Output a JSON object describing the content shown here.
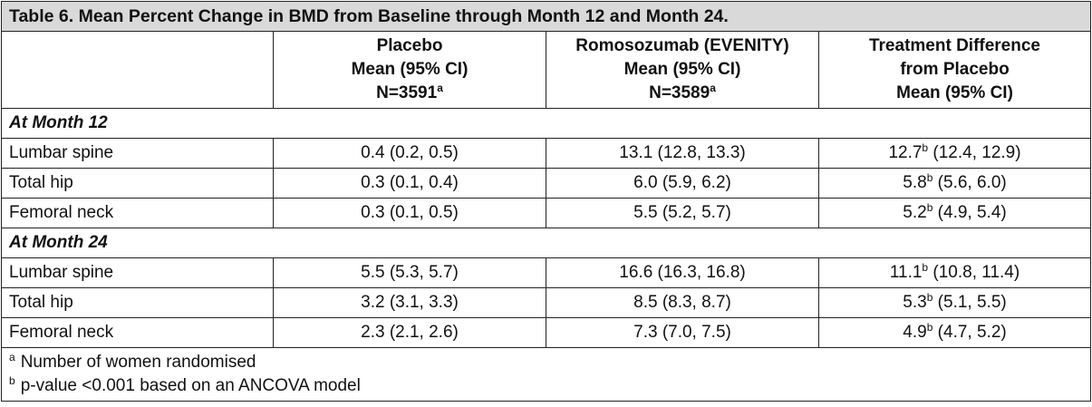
{
  "table": {
    "title": "Table 6. Mean Percent Change in BMD from Baseline through Month 12 and Month 24.",
    "headers": [
      {
        "lines": [
          "Placebo",
          "Mean (95% CI)",
          "N=3591"
        ],
        "sup": "a"
      },
      {
        "lines": [
          "Romosozumab (EVENITY)",
          "Mean (95% CI)",
          "N=3589"
        ],
        "sup": "a"
      },
      {
        "lines": [
          "Treatment Difference",
          "from Placebo",
          "Mean (95% CI)"
        ],
        "sup": ""
      }
    ],
    "sections": [
      {
        "label": "At Month 12",
        "rows": [
          {
            "site": "Lumbar spine",
            "placebo": "0.4 (0.2, 0.5)",
            "romo": "13.1 (12.8, 13.3)",
            "diff_value": "12.7",
            "diff_sup": "b",
            "diff_ci": " (12.4, 12.9)"
          },
          {
            "site": "Total hip",
            "placebo": "0.3 (0.1, 0.4)",
            "romo": "6.0 (5.9, 6.2)",
            "diff_value": "5.8",
            "diff_sup": "b",
            "diff_ci": " (5.6, 6.0)"
          },
          {
            "site": "Femoral neck",
            "placebo": "0.3 (0.1, 0.5)",
            "romo": "5.5 (5.2, 5.7)",
            "diff_value": "5.2",
            "diff_sup": "b",
            "diff_ci": " (4.9, 5.4)"
          }
        ]
      },
      {
        "label": "At Month 24",
        "rows": [
          {
            "site": "Lumbar spine",
            "placebo": "5.5 (5.3, 5.7)",
            "romo": "16.6 (16.3, 16.8)",
            "diff_value": "11.1",
            "diff_sup": "b",
            "diff_ci": " (10.8, 11.4)"
          },
          {
            "site": "Total hip",
            "placebo": "3.2 (3.1, 3.3)",
            "romo": "8.5 (8.3, 8.7)",
            "diff_value": "5.3",
            "diff_sup": "b",
            "diff_ci": " (5.1, 5.5)"
          },
          {
            "site": "Femoral neck",
            "placebo": "2.3 (2.1, 2.6)",
            "romo": "7.3 (7.0, 7.5)",
            "diff_value": "4.9",
            "diff_sup": "b",
            "diff_ci": " (4.7, 5.2)"
          }
        ]
      }
    ],
    "footnotes": [
      {
        "mark": "a",
        "text": "Number of women randomised"
      },
      {
        "mark": "b",
        "text": "p-value <0.001 based on an ANCOVA model"
      }
    ]
  }
}
